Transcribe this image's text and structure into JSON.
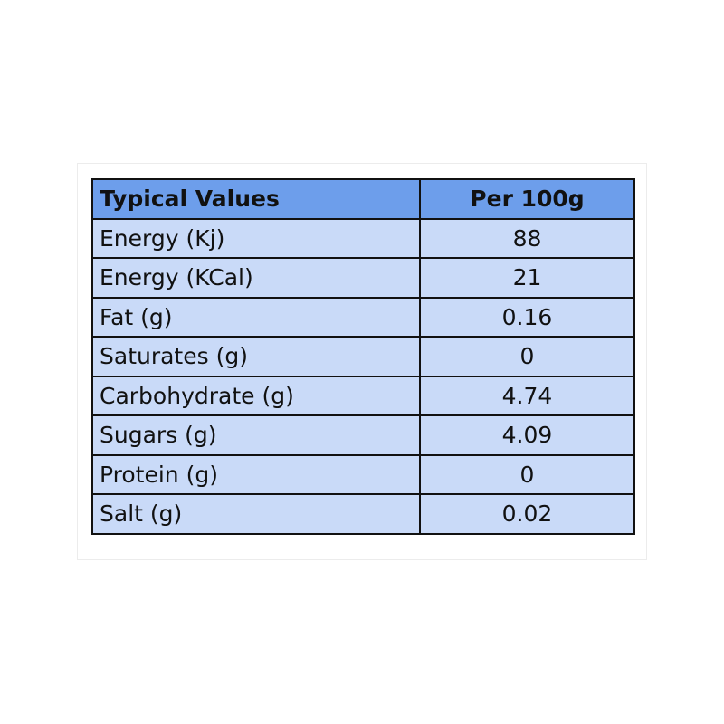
{
  "table": {
    "header": [
      "Typical Values",
      "Per 100g"
    ],
    "rows": [
      [
        "Energy (Kj)",
        "88"
      ],
      [
        "Energy (KCal)",
        "21"
      ],
      [
        "Fat (g)",
        "0.16"
      ],
      [
        "Saturates (g)",
        "0"
      ],
      [
        "Carbohydrate (g)",
        "4.74"
      ],
      [
        "Sugars (g)",
        "4.09"
      ],
      [
        "Protein (g)",
        "0"
      ],
      [
        "Salt (g)",
        "0.02"
      ]
    ]
  }
}
